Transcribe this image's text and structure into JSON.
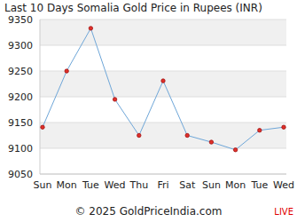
{
  "chart_data": {
    "type": "line",
    "title": "Last 10 Days Somalia Gold Price in Rupees (INR)",
    "categories": [
      "Sun",
      "Mon",
      "Tue",
      "Wed",
      "Thu",
      "Fri",
      "Sat",
      "Sun",
      "Mon",
      "Tue",
      "Wed"
    ],
    "values": [
      9141,
      9250,
      9333,
      9195,
      9125,
      9231,
      9125,
      9112,
      9097,
      9135,
      9141
    ],
    "color": "#6ea6d8",
    "marker": "circle",
    "ylim": [
      9050,
      9350
    ],
    "yticks": [
      9050,
      9100,
      9150,
      9200,
      9250,
      9300,
      9350
    ],
    "grid": true,
    "annotations": [
      "© 2025 GoldPriceIndia.com",
      "LIVE"
    ]
  }
}
